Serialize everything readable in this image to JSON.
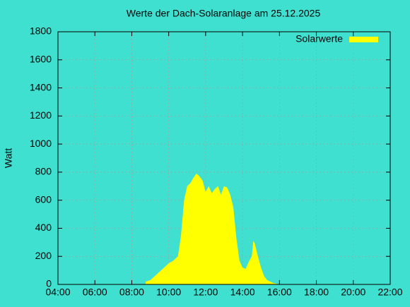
{
  "chart_data": {
    "type": "area",
    "title": "Werte der Dach-Solaranlage am 25.12.2025",
    "y_label": "Watt",
    "x": [
      "08:45",
      "09:00",
      "09:15",
      "09:30",
      "09:45",
      "10:00",
      "10:15",
      "10:30",
      "10:40",
      "10:50",
      "11:00",
      "11:10",
      "11:20",
      "11:30",
      "11:40",
      "11:50",
      "12:00",
      "12:10",
      "12:20",
      "12:30",
      "12:40",
      "12:50",
      "13:00",
      "13:10",
      "13:20",
      "13:30",
      "13:40",
      "13:50",
      "14:00",
      "14:10",
      "14:20",
      "14:30",
      "14:35",
      "14:40",
      "14:50",
      "15:00",
      "15:10",
      "15:20",
      "15:40",
      "16:00"
    ],
    "series": [
      {
        "name": "Solarwerte",
        "color": "#ffff00",
        "values": [
          20,
          30,
          60,
          90,
          120,
          150,
          170,
          200,
          350,
          600,
          700,
          720,
          760,
          790,
          770,
          740,
          660,
          700,
          650,
          680,
          700,
          640,
          700,
          690,
          640,
          550,
          330,
          170,
          120,
          110,
          160,
          200,
          310,
          290,
          200,
          120,
          60,
          30,
          10,
          0
        ]
      }
    ],
    "xlim": [
      "04:00",
      "22:00"
    ],
    "xticks": [
      "04:00",
      "06:00",
      "08:00",
      "10:00",
      "12:00",
      "14:00",
      "16:00",
      "18:00",
      "20:00",
      "22:00"
    ],
    "ylim": [
      0,
      1800
    ],
    "yticks": [
      0,
      200,
      400,
      600,
      800,
      1000,
      1200,
      1400,
      1600,
      1800
    ],
    "grid": true,
    "legend": "top-right"
  }
}
